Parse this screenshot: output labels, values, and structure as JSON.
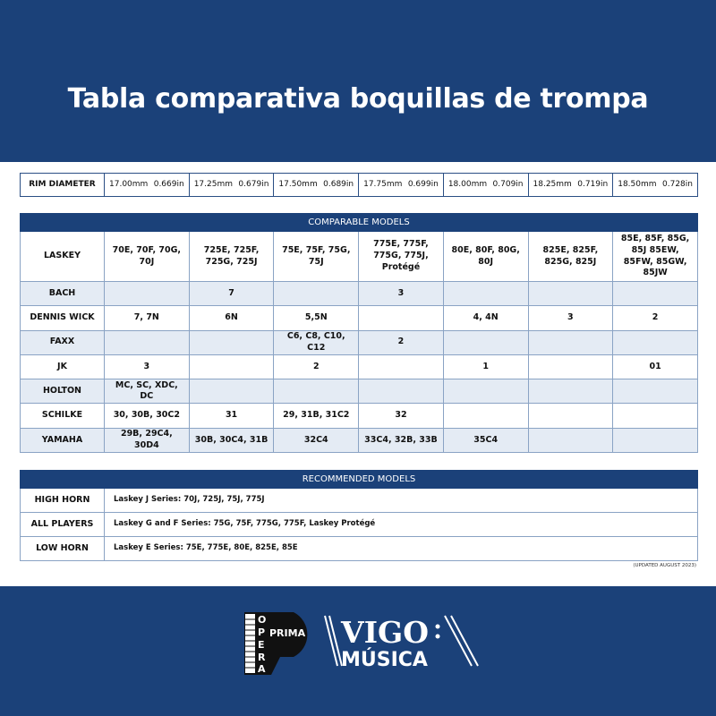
{
  "title": "Tabla comparativa boquillas de trompa",
  "rim": {
    "label": "RIM DIAMETER",
    "sizes": [
      {
        "mm": "17.00mm",
        "in": "0.669in"
      },
      {
        "mm": "17.25mm",
        "in": "0.679in"
      },
      {
        "mm": "17.50mm",
        "in": "0.689in"
      },
      {
        "mm": "17.75mm",
        "in": "0.699in"
      },
      {
        "mm": "18.00mm",
        "in": "0.709in"
      },
      {
        "mm": "18.25mm",
        "in": "0.719in"
      },
      {
        "mm": "18.50mm",
        "in": "0.728in"
      }
    ]
  },
  "comparable": {
    "header": "COMPARABLE MODELS",
    "rows": [
      {
        "brand": "LASKEY",
        "cells": [
          "70E, 70F, 70G, 70J",
          "725E, 725F, 725G, 725J",
          "75E, 75F, 75G, 75J",
          "775E, 775F, 775G, 775J, Protégé",
          "80E, 80F, 80G, 80J",
          "825E, 825F, 825G, 825J",
          "85E, 85F, 85G, 85J 85EW, 85FW, 85GW, 85JW"
        ]
      },
      {
        "brand": "BACH",
        "cells": [
          "",
          "7",
          "",
          "3",
          "",
          "",
          ""
        ]
      },
      {
        "brand": "DENNIS WICK",
        "cells": [
          "7, 7N",
          "6N",
          "5,5N",
          "",
          "4, 4N",
          "3",
          "2"
        ]
      },
      {
        "brand": "FAXX",
        "cells": [
          "",
          "",
          "C6, C8, C10, C12",
          "2",
          "",
          "",
          ""
        ]
      },
      {
        "brand": "JK",
        "cells": [
          "3",
          "",
          "2",
          "",
          "1",
          "",
          "01"
        ]
      },
      {
        "brand": "HOLTON",
        "cells": [
          "MC, SC, XDC, DC",
          "",
          "",
          "",
          "",
          "",
          ""
        ]
      },
      {
        "brand": "SCHILKE",
        "cells": [
          "30, 30B, 30C2",
          "31",
          "29, 31B, 31C2",
          "32",
          "",
          "",
          ""
        ]
      },
      {
        "brand": "YAMAHA",
        "cells": [
          "29B, 29C4, 30D4",
          "30B, 30C4, 31B",
          "32C4",
          "33C4, 32B, 33B",
          "35C4",
          "",
          ""
        ]
      }
    ]
  },
  "recommended": {
    "header": "RECOMMENDED MODELS",
    "rows": [
      {
        "label": "HIGH HORN",
        "value": "Laskey J Series: 70J, 725J, 75J, 775J"
      },
      {
        "label": "ALL PLAYERS",
        "value": "Laskey G and F Series: 75G, 75F, 775G, 775F, Laskey Protégé"
      },
      {
        "label": "LOW HORN",
        "value": "Laskey E Series: 75E, 775E, 80E, 825E, 85E"
      }
    ]
  },
  "updated": "(UPDATED AUGUST 2023)",
  "logos": {
    "opera_prima": [
      "O",
      "P",
      "E",
      "R",
      "A",
      "PRIMA"
    ],
    "vigo": "VIGO",
    "musica": "MÚSICA"
  },
  "colors": {
    "navy": "#1b4179",
    "alt_row": "#e4ebf4"
  }
}
